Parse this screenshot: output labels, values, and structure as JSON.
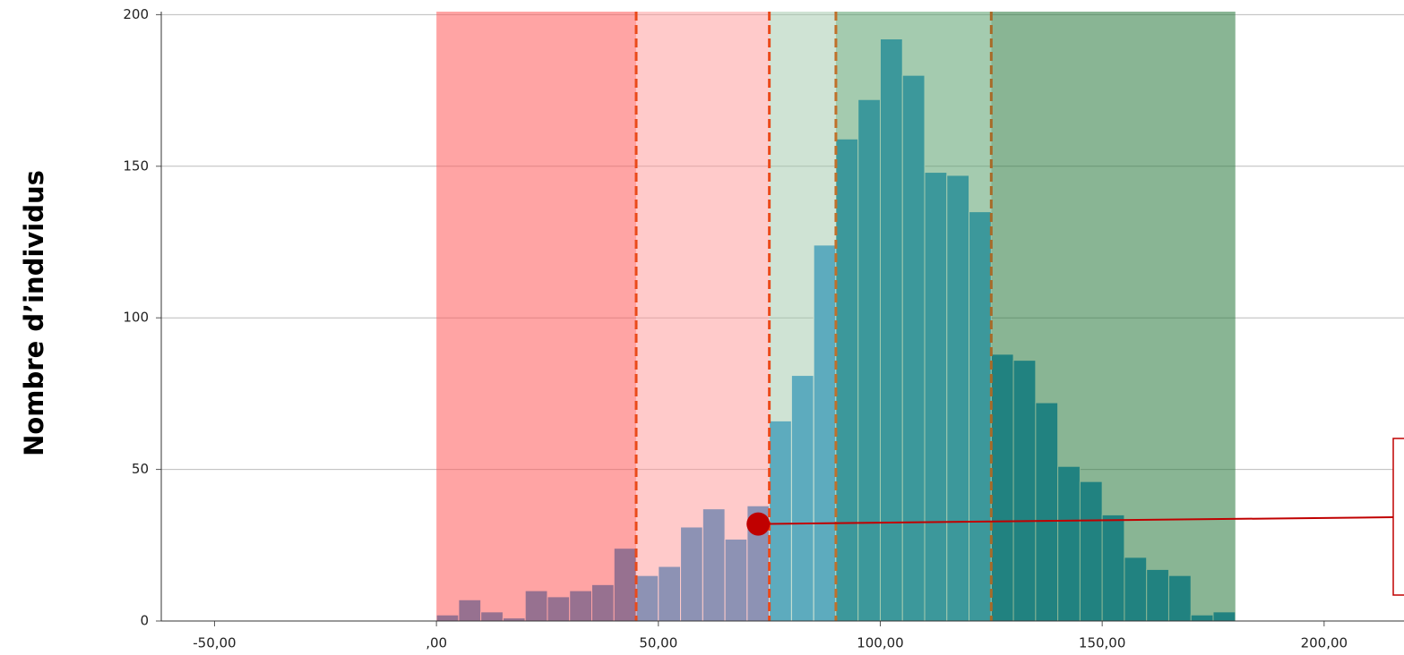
{
  "chart_data": {
    "type": "histogram",
    "ylabel": "Nombre d’individus",
    "bins": [
      0,
      5,
      10,
      15,
      20,
      25,
      30,
      35,
      40,
      45,
      50,
      55,
      60,
      65,
      70,
      75,
      80,
      85,
      90,
      95,
      100,
      105,
      110,
      115,
      120,
      125,
      130,
      135,
      140,
      145,
      150,
      155,
      160,
      165,
      170,
      175,
      180
    ],
    "counts": [
      2,
      7,
      3,
      1,
      10,
      8,
      10,
      12,
      24,
      15,
      18,
      31,
      37,
      27,
      38,
      66,
      81,
      124,
      159,
      172,
      192,
      180,
      148,
      147,
      135,
      88,
      86,
      72,
      51,
      46,
      35,
      21,
      17,
      15,
      2,
      3
    ],
    "color": "#1a8fd2",
    "xlim": [
      -62,
      218
    ],
    "ylim": [
      0,
      201
    ],
    "xticks": [
      {
        "value": -50,
        "label": "-50,00"
      },
      {
        "value": 0,
        "label": ",00"
      },
      {
        "value": 50,
        "label": "50,00"
      },
      {
        "value": 100,
        "label": "100,00"
      },
      {
        "value": 150,
        "label": "150,00"
      },
      {
        "value": 200,
        "label": "200,00"
      }
    ],
    "yticks": [
      0,
      50,
      100,
      150,
      200
    ],
    "grid": true,
    "zones": [
      {
        "from": 0,
        "to": 45,
        "color": "rgba(255,90,90,0.55)"
      },
      {
        "from": 45,
        "to": 75,
        "color": "rgba(255,150,150,0.5)"
      },
      {
        "from": 75,
        "to": 90,
        "color": "rgba(160,200,170,0.5)"
      },
      {
        "from": 90,
        "to": 125,
        "color": "rgba(90,160,110,0.55)"
      },
      {
        "from": 125,
        "to": 180,
        "color": "rgba(40,120,60,0.55)"
      }
    ],
    "dashed_lines": [
      {
        "x": 45,
        "color": "#ea4a1a"
      },
      {
        "x": 75,
        "color": "#ea4a1a"
      },
      {
        "x": 90,
        "color": "#c0702a"
      },
      {
        "x": 125,
        "color": "#a86a28"
      }
    ],
    "marker": {
      "x": 72.5,
      "y": 32,
      "color": "#c00000"
    }
  }
}
